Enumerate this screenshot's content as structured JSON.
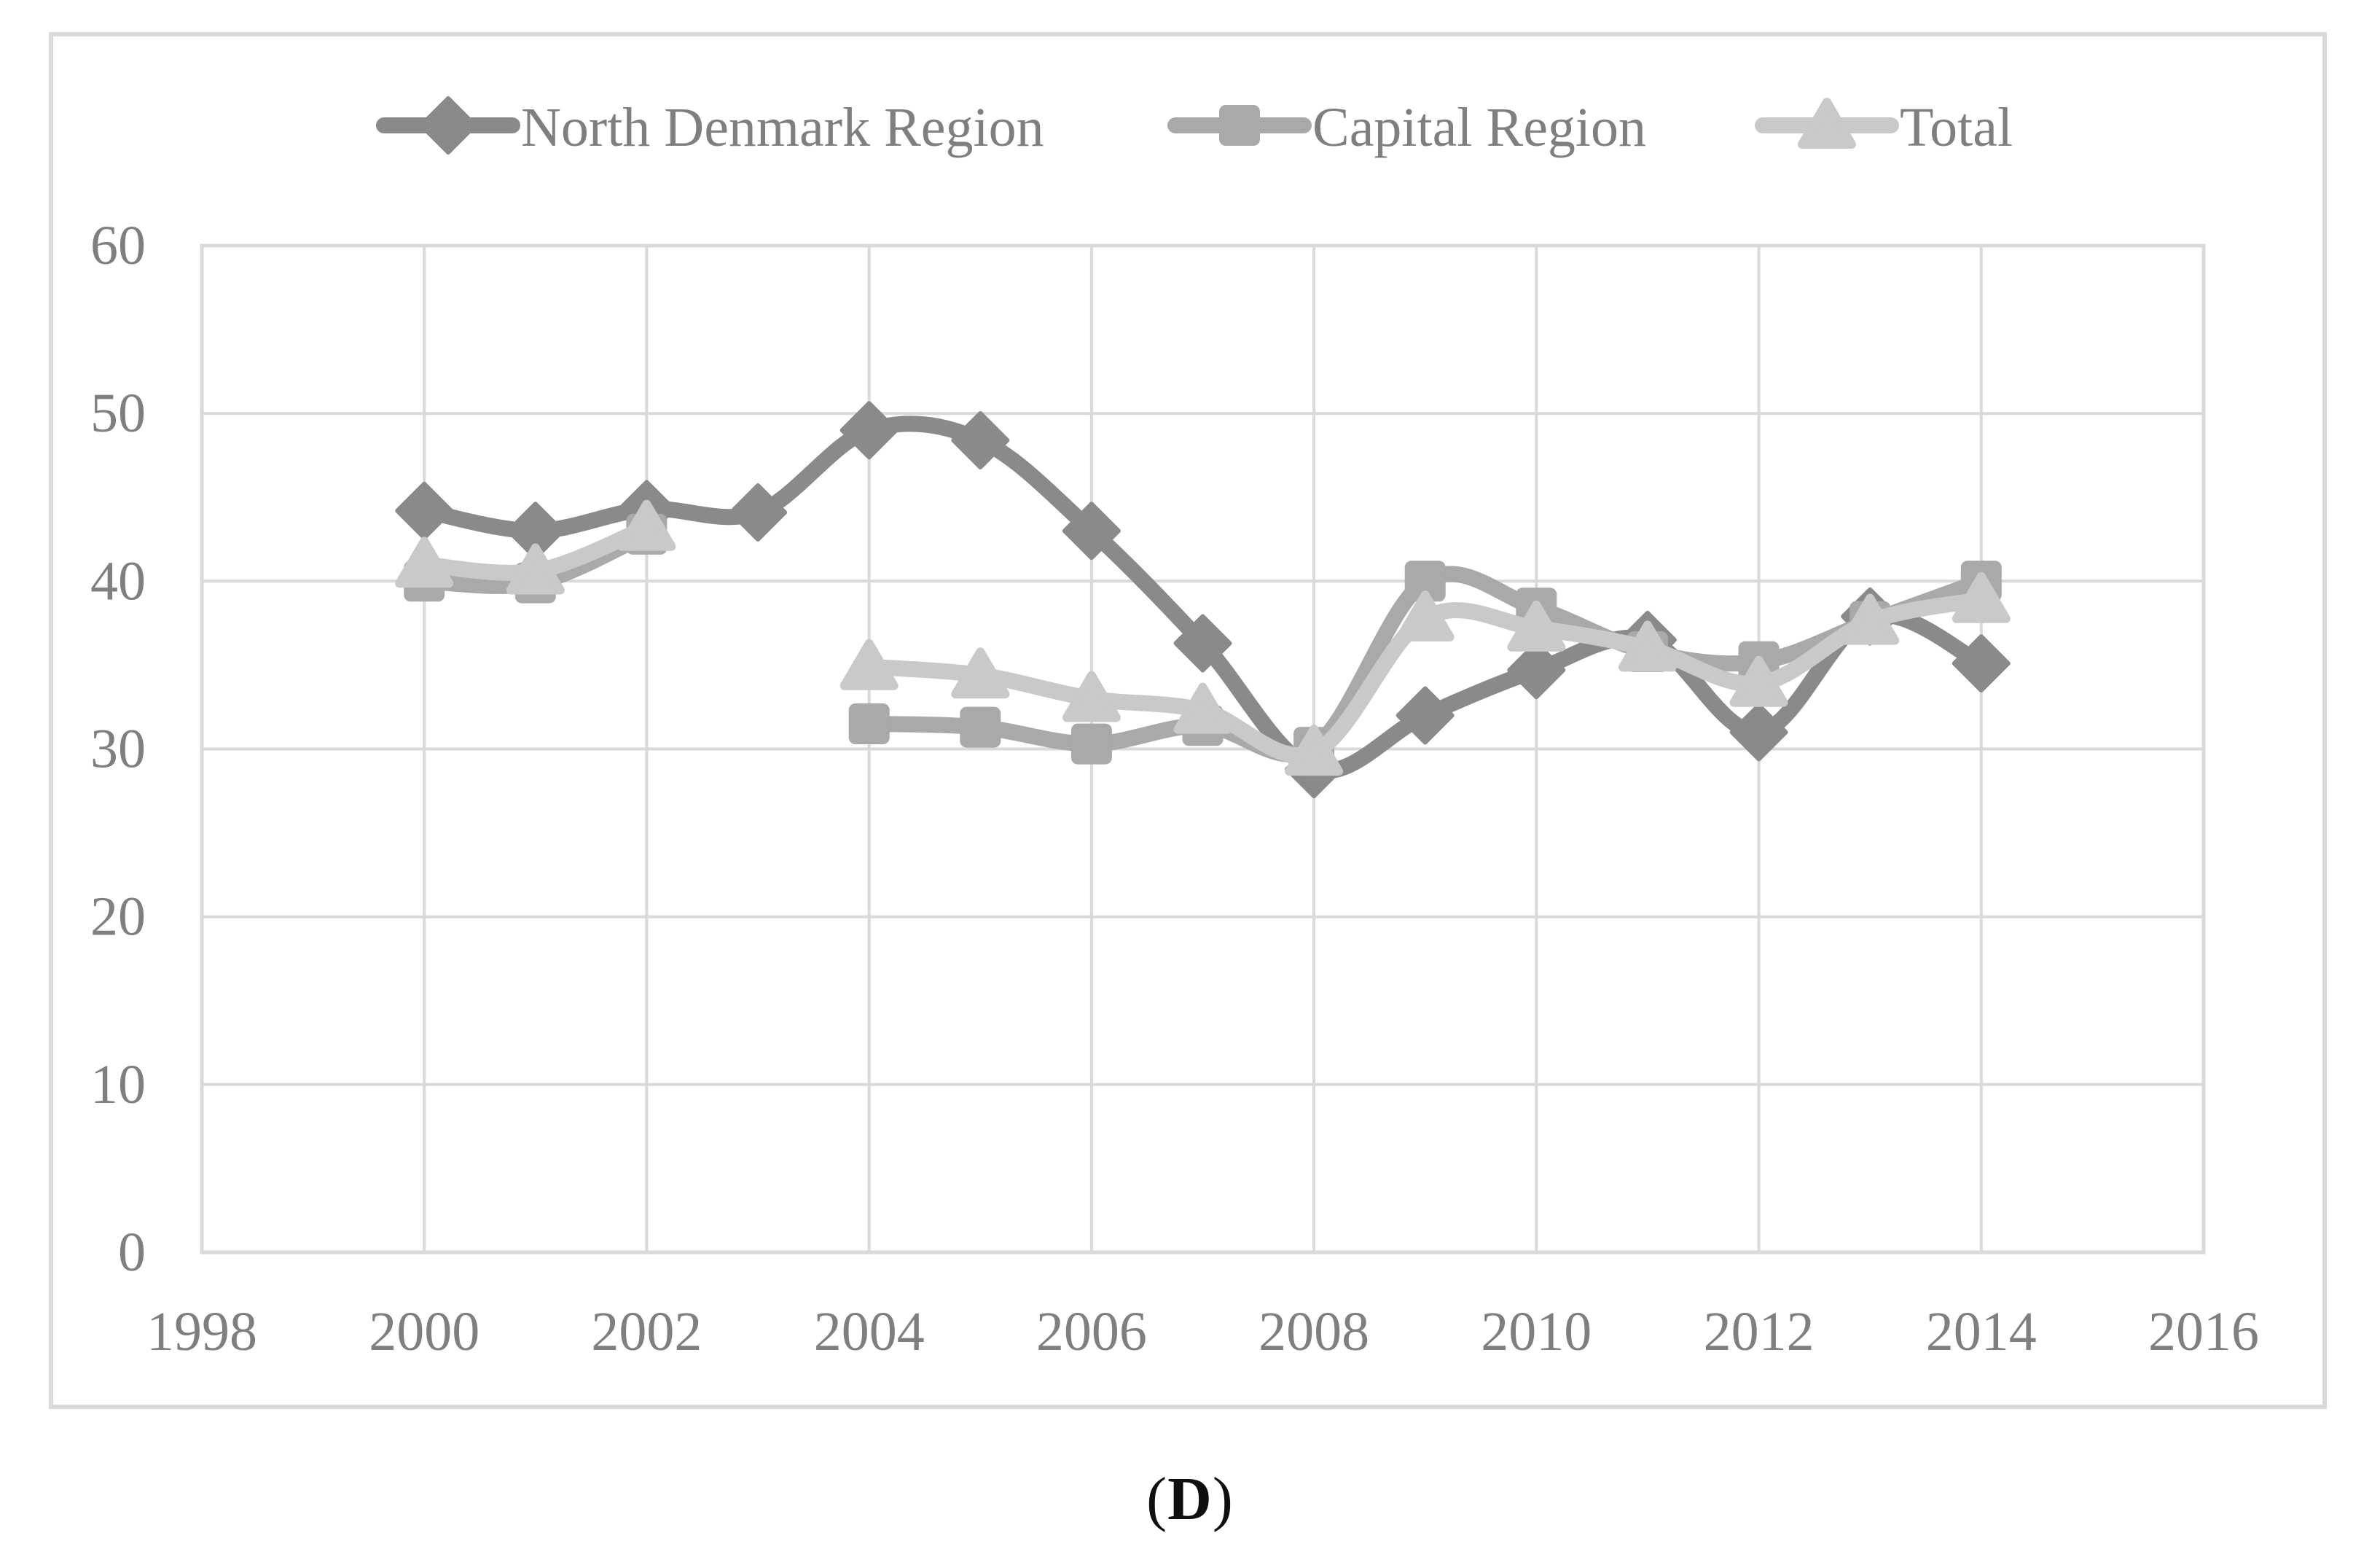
{
  "figure": {
    "caption": {
      "open": "(",
      "letter": "D",
      "close": ")"
    }
  },
  "chart_data": {
    "type": "line",
    "title": "",
    "xlabel": "",
    "ylabel": "",
    "x": [
      2000,
      2001,
      2002,
      2003,
      2004,
      2005,
      2006,
      2007,
      2008,
      2009,
      2010,
      2011,
      2012,
      2013,
      2014
    ],
    "series": [
      {
        "name": "North Denmark Region",
        "marker": "diamond",
        "color": "#8a8a8a",
        "values": [
          44.2,
          43.0,
          44.3,
          44.1,
          49.0,
          48.4,
          43.0,
          36.3,
          28.8,
          32.0,
          34.7,
          36.5,
          31.0,
          37.9,
          35.1
        ]
      },
      {
        "name": "Capital Region",
        "marker": "square",
        "color": "#a9a9a9",
        "values": [
          40.0,
          39.9,
          42.8,
          null,
          31.5,
          31.3,
          30.3,
          31.4,
          30.1,
          40.0,
          38.4,
          35.8,
          35.2,
          37.6,
          40.0
        ]
      },
      {
        "name": "Total",
        "marker": "triangle",
        "color": "#c9c9c9",
        "values": [
          41.0,
          40.6,
          43.2,
          null,
          34.9,
          34.4,
          33.0,
          32.3,
          29.8,
          37.8,
          37.2,
          36.0,
          33.9,
          37.6,
          38.9
        ]
      }
    ],
    "x_ticks": [
      1998,
      2000,
      2002,
      2004,
      2006,
      2008,
      2010,
      2012,
      2014,
      2016
    ],
    "y_ticks": [
      0,
      10,
      20,
      30,
      40,
      50,
      60
    ],
    "xlim": [
      1998,
      2016
    ],
    "ylim": [
      0,
      60
    ],
    "grid": true,
    "line_style": "smooth",
    "legend_position": "top",
    "colors": {
      "gridline": "#d9d9d9",
      "plot_border": "#d9d9d9",
      "panel_border": "#d9d9d9",
      "axis_text": "#7f7f7f",
      "legend_text": "#7f7f7f",
      "caption_text": "#0f0f0f",
      "background": "#ffffff"
    }
  }
}
